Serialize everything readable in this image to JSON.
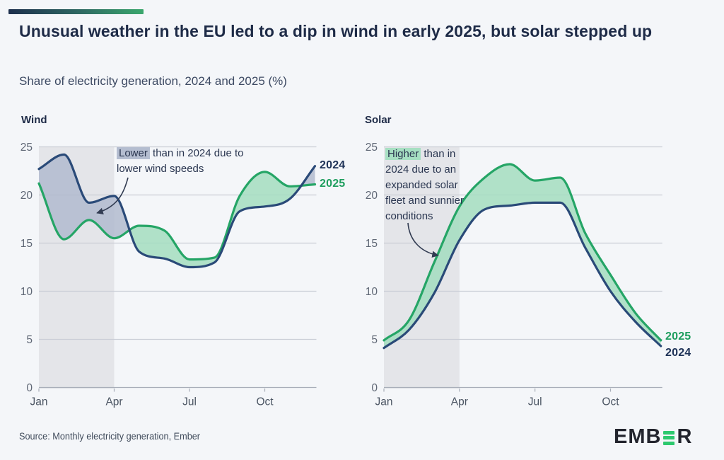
{
  "header": {
    "title": "Unusual weather in the EU led to a dip in wind in early 2025, but solar stepped up",
    "subtitle": "Share of electricity generation, 2024 and 2025 (%)"
  },
  "footer": {
    "source": "Source: Monthly electricity generation, Ember",
    "logo_prefix": "EMB",
    "logo_suffix": "R"
  },
  "colors": {
    "navy_line": "#2a4a78",
    "green_line": "#25a566",
    "navy_gap_fill": "#b1bbcf",
    "green_gap_fill": "#a3ddc0",
    "shaded_band": "#e4e5e9",
    "gridline": "#c9cdd6",
    "axis": "#a8aeb9",
    "tick_label": "#606876",
    "navy_label": "#1e3257",
    "green_label": "#1f9e5f",
    "annotation_arrow": "#323c52",
    "logo_green": "#2dc96e",
    "logo_dark": "#23252e"
  },
  "chart_data": [
    {
      "id": "wind",
      "type": "line",
      "title": "Wind",
      "categories": [
        "Jan",
        "Feb",
        "Mar",
        "Apr",
        "May",
        "Jun",
        "Jul",
        "Aug",
        "Sep",
        "Oct",
        "Nov",
        "Dec"
      ],
      "xtick_labels": [
        "Jan",
        "Apr",
        "Jul",
        "Oct"
      ],
      "yticks": [
        0,
        5,
        10,
        15,
        20,
        25
      ],
      "ylim": [
        0,
        25
      ],
      "grid": true,
      "shaded_region": {
        "from": "Jan",
        "to": "Apr"
      },
      "series": [
        {
          "name": "2024",
          "values": [
            22.7,
            24.2,
            19.2,
            19.9,
            14.1,
            13.4,
            12.5,
            13.0,
            18.3,
            18.8,
            19.6,
            23.0
          ]
        },
        {
          "name": "2025",
          "values": [
            21.2,
            15.4,
            17.4,
            15.5,
            16.8,
            16.3,
            13.3,
            13.5,
            19.9,
            22.4,
            20.9,
            21.1
          ]
        }
      ],
      "annotation": {
        "highlight": "Lower",
        "text": " than in 2024 due to lower wind speeds"
      }
    },
    {
      "id": "solar",
      "type": "line",
      "title": "Solar",
      "categories": [
        "Jan",
        "Feb",
        "Mar",
        "Apr",
        "May",
        "Jun",
        "Jul",
        "Aug",
        "Sep",
        "Oct",
        "Nov",
        "Dec"
      ],
      "xtick_labels": [
        "Jan",
        "Apr",
        "Jul",
        "Oct"
      ],
      "yticks": [
        0,
        5,
        10,
        15,
        20,
        25
      ],
      "ylim": [
        0,
        25
      ],
      "grid": true,
      "shaded_region": {
        "from": "Jan",
        "to": "Apr"
      },
      "series": [
        {
          "name": "2024",
          "values": [
            4.1,
            6.0,
            9.8,
            15.3,
            18.5,
            18.9,
            19.2,
            19.2,
            14.5,
            10.0,
            6.8,
            4.3
          ]
        },
        {
          "name": "2025",
          "values": [
            4.9,
            7.0,
            13.0,
            18.8,
            21.8,
            23.2,
            21.5,
            21.8,
            16.0,
            11.7,
            7.7,
            4.9
          ]
        }
      ],
      "annotation": {
        "highlight": "Higher",
        "text": " than in 2024 due to an expanded solar fleet and sunnier conditions"
      }
    }
  ]
}
